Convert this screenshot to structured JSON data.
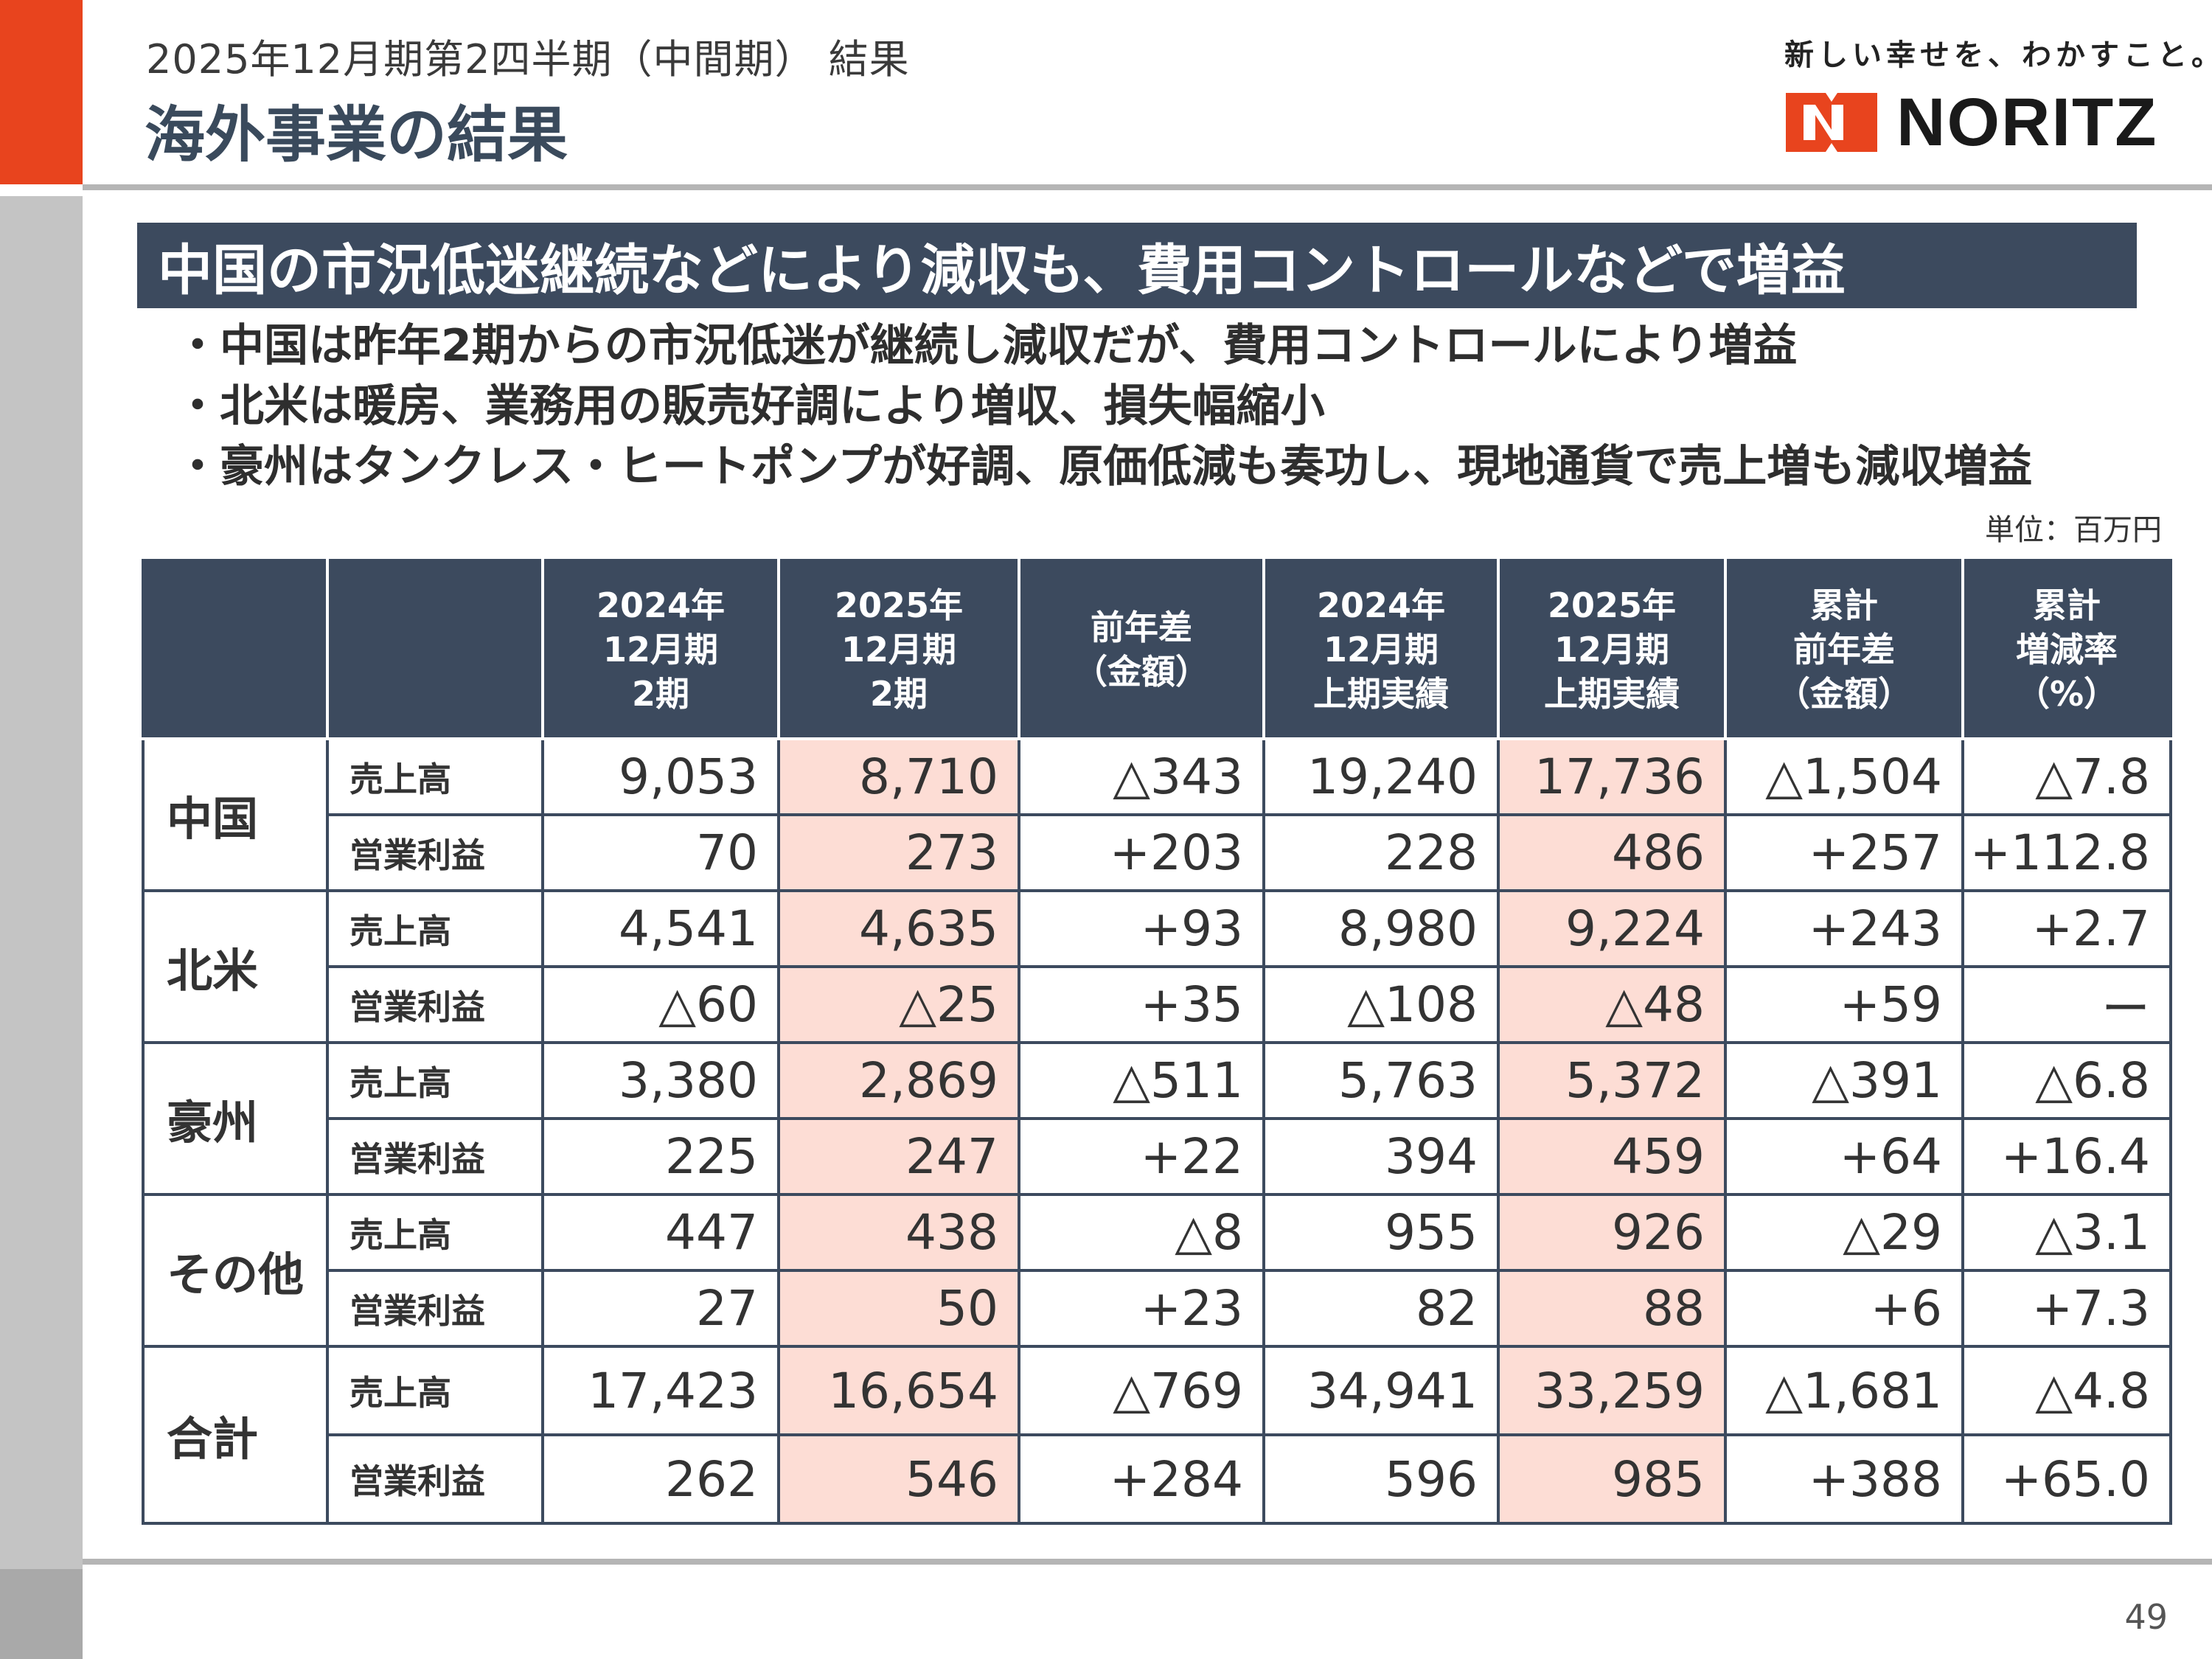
{
  "header": {
    "subtitle": "2025年12月期第2四半期（中間期） 結果",
    "title": "海外事業の結果"
  },
  "brand": {
    "tagline": "新しい幸せを、わかすこと。",
    "logo_text": "NORITZ",
    "logo_color": "#E8441E"
  },
  "headline": "中国の市況低迷継続などにより減収も、費用コントロールなどで増益",
  "bullets": [
    "・中国は昨年2期からの市況低迷が継続し減収だが、費用コントロールにより増益",
    "・北米は暖房、業務用の販売好調により増収、損失幅縮小",
    "・豪州はタンクレス・ヒートポンプが好調、原価低減も奏功し、現地通貨で売上増も減収増益"
  ],
  "unit_label": "単位：百万円",
  "table": {
    "columns": [
      "",
      "",
      "2024年\n12月期\n2期",
      "2025年\n12月期\n2期",
      "前年差\n（金額）",
      "2024年\n12月期\n上期実績",
      "2025年\n12月期\n上期実績",
      "累計\n前年差\n（金額）",
      "累計\n増減率\n（%）"
    ],
    "groups": [
      {
        "region": "中国",
        "rows": [
          {
            "metric": "売上高",
            "values": [
              "9,053",
              "8,710",
              "△343",
              "19,240",
              "17,736",
              "△1,504",
              "△7.8"
            ]
          },
          {
            "metric": "営業利益",
            "values": [
              "70",
              "273",
              "+203",
              "228",
              "486",
              "+257",
              "+112.8"
            ]
          }
        ]
      },
      {
        "region": "北米",
        "rows": [
          {
            "metric": "売上高",
            "values": [
              "4,541",
              "4,635",
              "+93",
              "8,980",
              "9,224",
              "+243",
              "+2.7"
            ]
          },
          {
            "metric": "営業利益",
            "values": [
              "△60",
              "△25",
              "+35",
              "△108",
              "△48",
              "+59",
              "ー"
            ]
          }
        ]
      },
      {
        "region": "豪州",
        "rows": [
          {
            "metric": "売上高",
            "values": [
              "3,380",
              "2,869",
              "△511",
              "5,763",
              "5,372",
              "△391",
              "△6.8"
            ]
          },
          {
            "metric": "営業利益",
            "values": [
              "225",
              "247",
              "+22",
              "394",
              "459",
              "+64",
              "+16.4"
            ]
          }
        ]
      },
      {
        "region": "その他",
        "rows": [
          {
            "metric": "売上高",
            "values": [
              "447",
              "438",
              "△8",
              "955",
              "926",
              "△29",
              "△3.1"
            ]
          },
          {
            "metric": "営業利益",
            "values": [
              "27",
              "50",
              "+23",
              "82",
              "88",
              "+6",
              "+7.3"
            ]
          }
        ]
      },
      {
        "region": "合計",
        "rows": [
          {
            "metric": "売上高",
            "values": [
              "17,423",
              "16,654",
              "△769",
              "34,941",
              "33,259",
              "△1,681",
              "△4.8"
            ]
          },
          {
            "metric": "営業利益",
            "values": [
              "262",
              "546",
              "+284",
              "596",
              "985",
              "+388",
              "+65.0"
            ]
          }
        ]
      }
    ]
  },
  "page_number": "49"
}
